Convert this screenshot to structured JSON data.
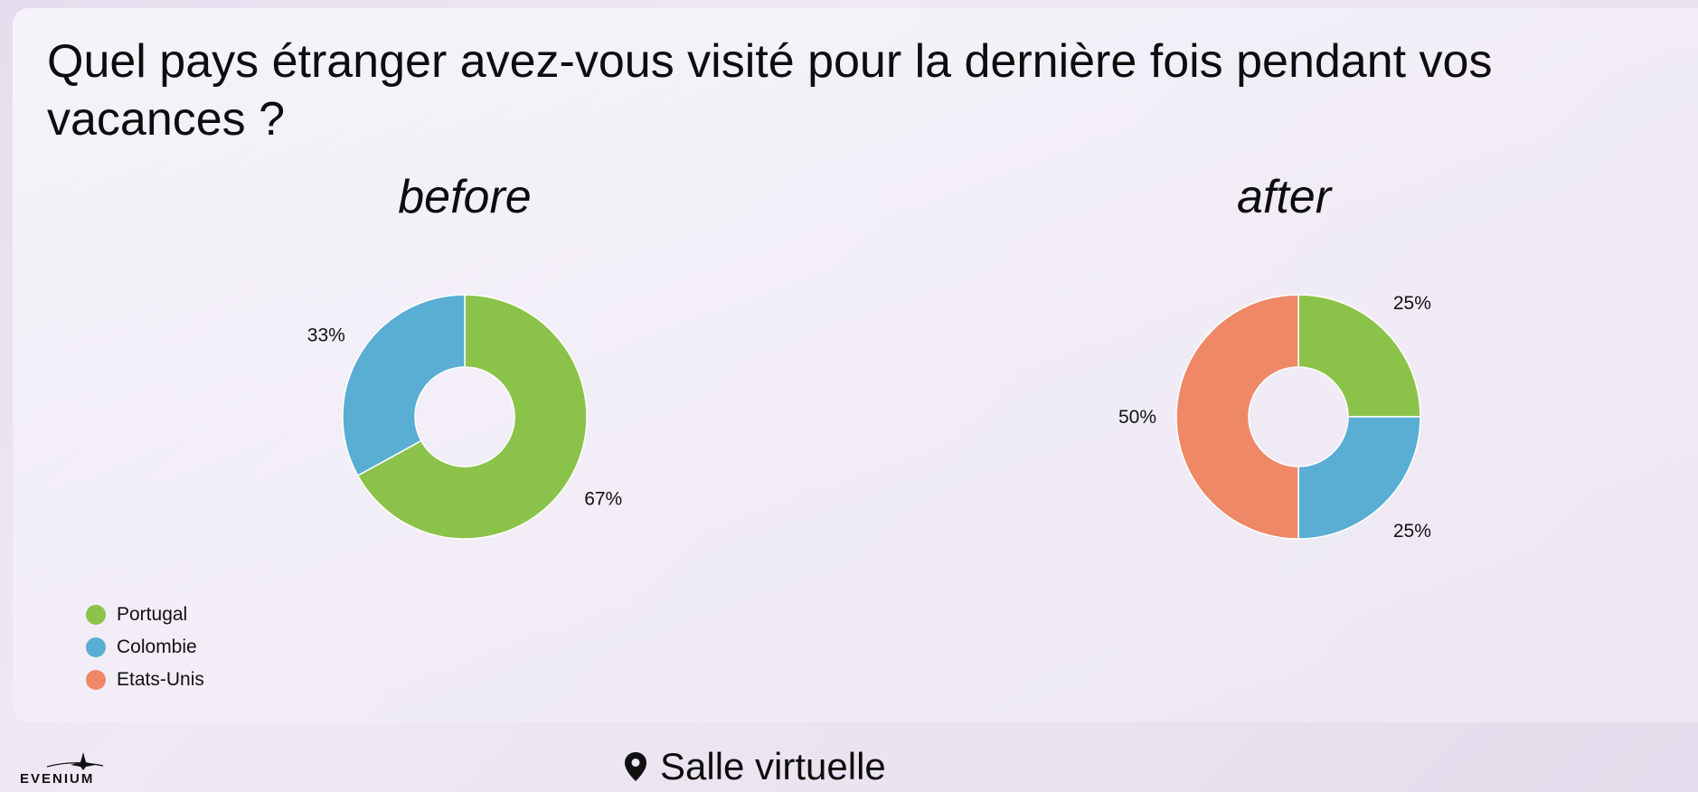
{
  "question": "Quel pays étranger avez-vous visité pour la dernière fois pendant vos vacances ?",
  "legend": [
    {
      "label": "Portugal",
      "color": "#8bc34a"
    },
    {
      "label": "Colombie",
      "color": "#5aadd3"
    },
    {
      "label": "Etats-Unis",
      "color": "#ee8866"
    }
  ],
  "chart_data": [
    {
      "type": "pie",
      "donut": true,
      "title": "before",
      "categories": [
        "Portugal",
        "Colombie",
        "Etats-Unis"
      ],
      "values": [
        67,
        33,
        0
      ],
      "labels": [
        "67%",
        "33%",
        ""
      ],
      "colors": [
        "#8bc34a",
        "#5aadd3",
        "#ee8866"
      ]
    },
    {
      "type": "pie",
      "donut": true,
      "title": "after",
      "categories": [
        "Portugal",
        "Colombie",
        "Etats-Unis"
      ],
      "values": [
        25,
        25,
        50
      ],
      "labels": [
        "25%",
        "25%",
        "50%"
      ],
      "colors": [
        "#8bc34a",
        "#5aadd3",
        "#ee8866"
      ]
    }
  ],
  "footer": {
    "logo_text": "EVENIUM",
    "location_icon": "map-pin-icon",
    "location": "Salle virtuelle"
  }
}
